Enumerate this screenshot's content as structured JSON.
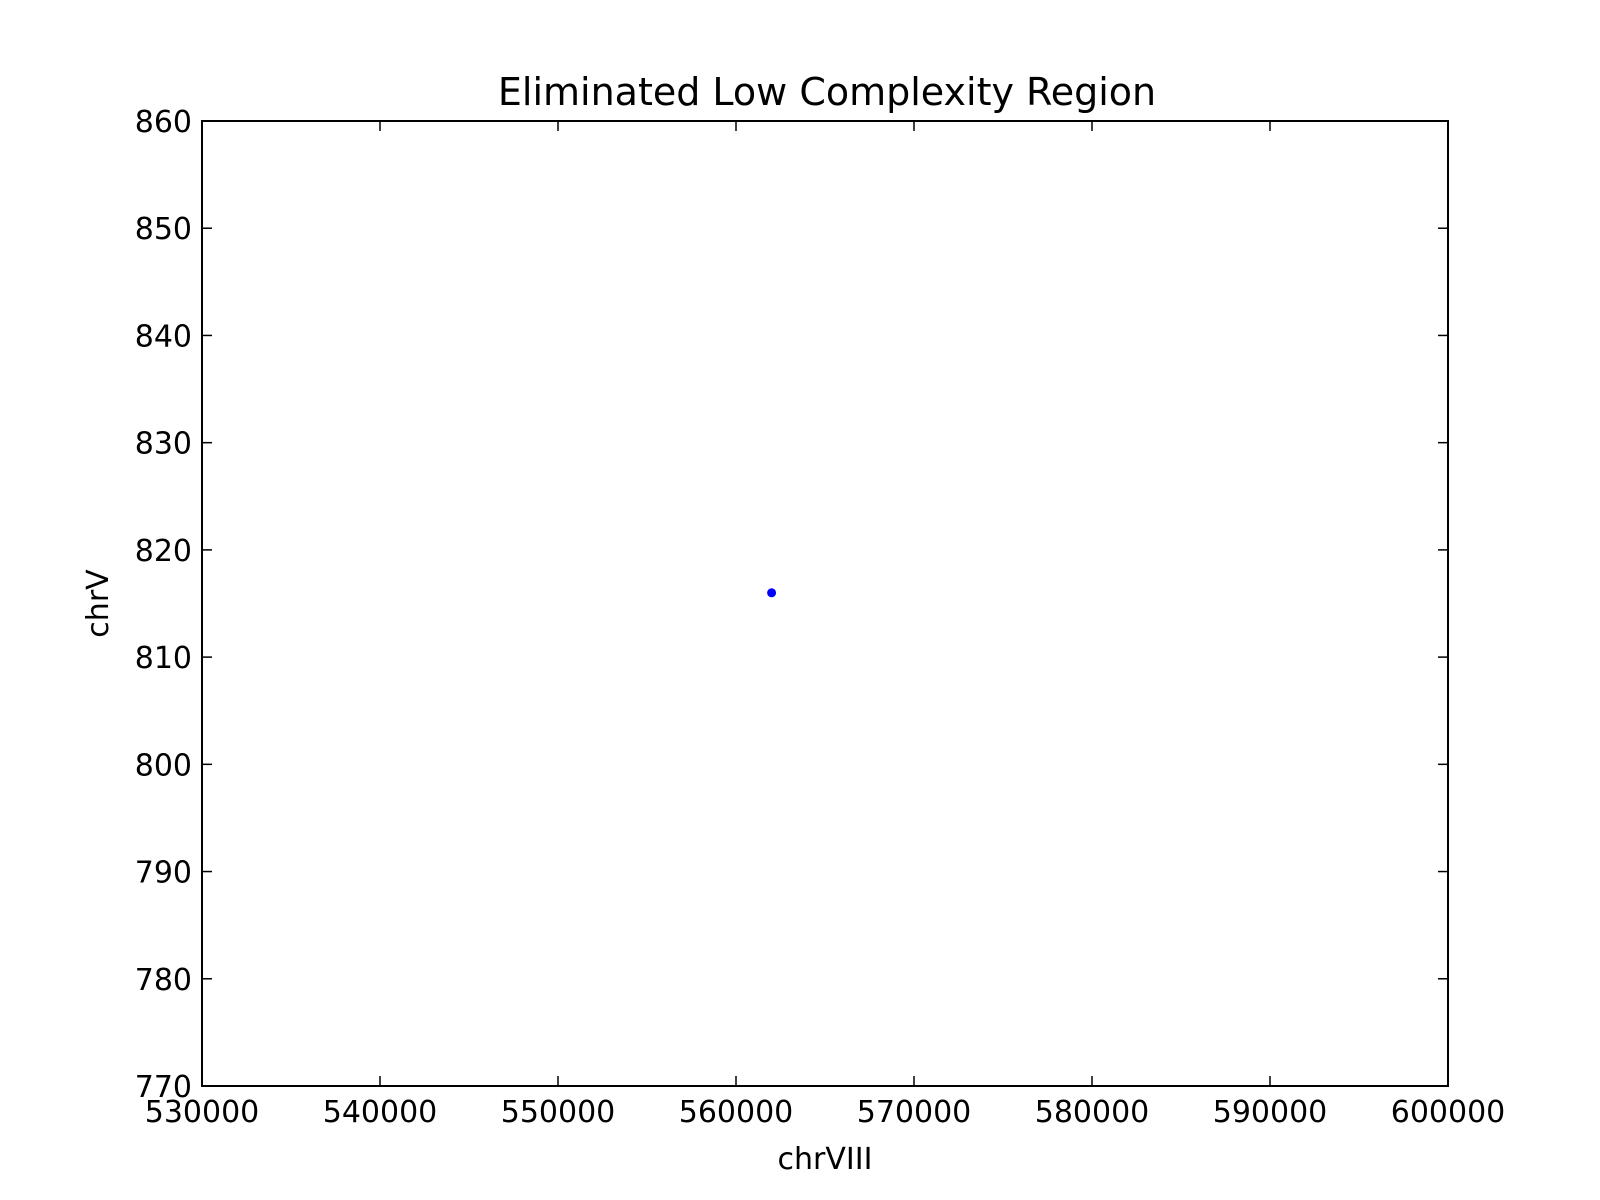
{
  "chart_data": {
    "type": "scatter",
    "title": "Eliminated Low Complexity Region",
    "xlabel": "chrVIII",
    "ylabel": "chrV",
    "xlim": [
      530000,
      600000
    ],
    "ylim": [
      770,
      860
    ],
    "x_ticks": [
      530000,
      540000,
      550000,
      560000,
      570000,
      580000,
      590000,
      600000
    ],
    "y_ticks": [
      770,
      780,
      790,
      800,
      810,
      820,
      830,
      840,
      850,
      860
    ],
    "grid": false,
    "series": [
      {
        "color": "#0000ff",
        "points": [
          {
            "x": 562000,
            "y": 816
          }
        ]
      }
    ]
  }
}
